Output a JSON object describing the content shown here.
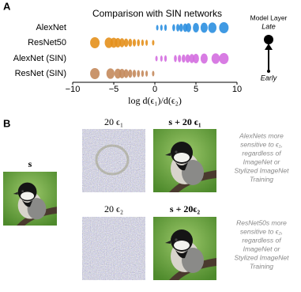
{
  "panel_labels": [
    "A",
    "B"
  ],
  "chart_data": {
    "type": "strip",
    "title": "Comparison with SIN networks",
    "xlabel": "log d(ϵ₁)/d(ϵ₂)",
    "categories": [
      "AlexNet",
      "ResNet50",
      "AlexNet (SIN)",
      "ResNet (SIN)"
    ],
    "series": [
      {
        "name": "AlexNet",
        "color": "#2b8fe0",
        "values": [
          0.3,
          0.8,
          1.3,
          2.3,
          2.8,
          3.2,
          3.7,
          4.1,
          5.0,
          6.0,
          7.0,
          8.4
        ]
      },
      {
        "name": "ResNet50",
        "color": "#e4901c",
        "values": [
          -0.2,
          -1.0,
          -1.5,
          -2.0,
          -2.5,
          -3.0,
          -3.5,
          -4.0,
          -4.5,
          -5.0,
          -5.6,
          -7.3
        ]
      },
      {
        "name": "AlexNet (SIN)",
        "color": "#d46ee0",
        "values": [
          0.2,
          0.8,
          1.3,
          2.5,
          3.0,
          3.5,
          4.0,
          4.5,
          5.0,
          6.0,
          7.4,
          8.4
        ]
      },
      {
        "name": "ResNet (SIN)",
        "color": "#c48a5c",
        "values": [
          -0.2,
          -1.0,
          -1.5,
          -2.0,
          -2.5,
          -3.0,
          -3.5,
          -4.0,
          -4.5,
          -5.4,
          -7.3
        ]
      }
    ],
    "xlim": [
      -10,
      10
    ],
    "xticks": [
      {
        "value": -10,
        "label": "−10"
      },
      {
        "value": -5,
        "label": "−5"
      },
      0,
      5,
      10
    ],
    "legend": {
      "title": "Model Layer",
      "late": "Late",
      "early": "Early"
    }
  },
  "panel_b": {
    "source_label": "s",
    "row1": {
      "noise_label": "20 ϵ₁",
      "sum_label": "s + 20 ϵ₁",
      "note": [
        "AlexNets more",
        "sensitive to ϵ₁,",
        "regardless of",
        "ImageNet or",
        "Stylized ImageNet",
        "Training"
      ]
    },
    "row2": {
      "noise_label": "20 ϵ₂",
      "sum_label": "s + 20ϵ₂",
      "note": [
        "ResNet50s more",
        "sensitive to ϵ₂,",
        "regardless of",
        "ImageNet or",
        "Stylized ImageNet",
        "Training"
      ]
    }
  }
}
